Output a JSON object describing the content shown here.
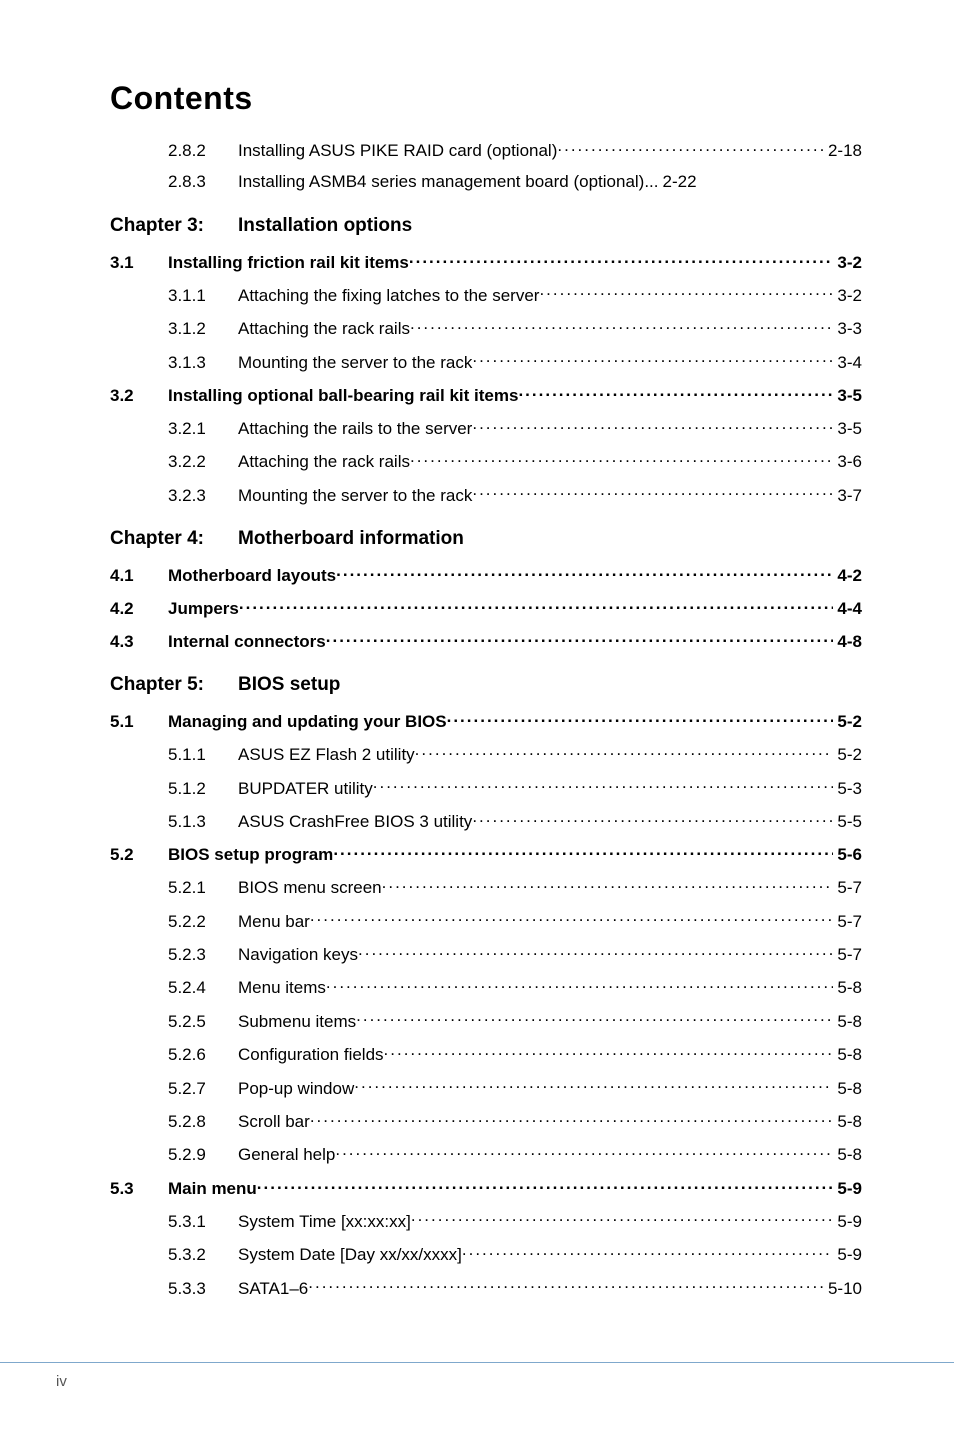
{
  "title": "Contents",
  "footer_page": "iv",
  "colors": {
    "footer_border": "#7fa8cc",
    "text": "#000000",
    "bg": "#ffffff"
  },
  "typography": {
    "title_size_pt": 24,
    "body_size_pt": 13,
    "chapter_size_pt": 14,
    "font_family": "Arial"
  },
  "lines": [
    {
      "kind": "sub",
      "num": "2.8.2",
      "label": "Installing ASUS PIKE RAID card (optional)",
      "page": "2-18",
      "leader": true
    },
    {
      "kind": "sub",
      "num": "2.8.3",
      "label": "Installing ASMB4 series management board (optional)...",
      "page": "2-22",
      "leader": false
    },
    {
      "kind": "chapter",
      "num": "Chapter 3:",
      "label": "Installation options"
    },
    {
      "kind": "sec",
      "num": "3.1",
      "label": "Installing friction rail kit items",
      "page": "3-2",
      "leader": true
    },
    {
      "kind": "sub",
      "num": "3.1.1",
      "label": "Attaching the fixing latches to the server",
      "page": "3-2",
      "leader": true
    },
    {
      "kind": "sub",
      "num": "3.1.2",
      "label": "Attaching the rack rails",
      "page": "3-3",
      "leader": true
    },
    {
      "kind": "sub",
      "num": "3.1.3",
      "label": "Mounting the server to the rack",
      "page": "3-4",
      "leader": true
    },
    {
      "kind": "sec",
      "num": "3.2",
      "label": "Installing optional ball-bearing rail kit  items",
      "page": "3-5",
      "leader": true
    },
    {
      "kind": "sub",
      "num": "3.2.1",
      "label": "Attaching the rails to the server",
      "page": "3-5",
      "leader": true
    },
    {
      "kind": "sub",
      "num": "3.2.2",
      "label": "Attaching the rack rails",
      "page": "3-6",
      "leader": true
    },
    {
      "kind": "sub",
      "num": "3.2.3",
      "label": "Mounting the server to the rack",
      "page": "3-7",
      "leader": true
    },
    {
      "kind": "chapter",
      "num": "Chapter 4:",
      "label": "Motherboard information"
    },
    {
      "kind": "sec",
      "num": "4.1",
      "label": "Motherboard layouts",
      "page": "4-2",
      "leader": true
    },
    {
      "kind": "sec",
      "num": "4.2",
      "label": "Jumpers",
      "page": "4-4",
      "leader": true
    },
    {
      "kind": "sec",
      "num": "4.3",
      "label": "Internal connectors",
      "page": "4-8",
      "leader": true
    },
    {
      "kind": "chapter",
      "num": "Chapter 5:",
      "label": "BIOS setup"
    },
    {
      "kind": "sec",
      "num": "5.1",
      "label": "Managing and updating your BIOS",
      "page": "5-2",
      "leader": true
    },
    {
      "kind": "sub",
      "num": "5.1.1",
      "label": "ASUS EZ Flash 2 utility",
      "page": "5-2",
      "leader": true
    },
    {
      "kind": "sub",
      "num": "5.1.2",
      "label": "BUPDATER utility",
      "page": "5-3",
      "leader": true
    },
    {
      "kind": "sub",
      "num": "5.1.3",
      "label": "ASUS CrashFree BIOS 3 utility",
      "page": "5-5",
      "leader": true
    },
    {
      "kind": "sec",
      "num": "5.2",
      "label": "BIOS setup program",
      "page": "5-6",
      "leader": true
    },
    {
      "kind": "sub",
      "num": "5.2.1",
      "label": "BIOS menu screen",
      "page": "5-7",
      "leader": true
    },
    {
      "kind": "sub",
      "num": "5.2.2",
      "label": "Menu bar",
      "page": "5-7",
      "leader": true
    },
    {
      "kind": "sub",
      "num": "5.2.3",
      "label": "Navigation keys",
      "page": "5-7",
      "leader": true
    },
    {
      "kind": "sub",
      "num": "5.2.4",
      "label": "Menu items",
      "page": "5-8",
      "leader": true
    },
    {
      "kind": "sub",
      "num": "5.2.5",
      "label": "Submenu items",
      "page": "5-8",
      "leader": true
    },
    {
      "kind": "sub",
      "num": "5.2.6",
      "label": "Configuration fields",
      "page": "5-8",
      "leader": true
    },
    {
      "kind": "sub",
      "num": "5.2.7",
      "label": "Pop-up window",
      "page": "5-8",
      "leader": true
    },
    {
      "kind": "sub",
      "num": "5.2.8",
      "label": "Scroll bar",
      "page": "5-8",
      "leader": true
    },
    {
      "kind": "sub",
      "num": "5.2.9",
      "label": "General help",
      "page": "5-8",
      "leader": true
    },
    {
      "kind": "sec",
      "num": "5.3",
      "label": "Main menu",
      "page": "5-9",
      "leader": true
    },
    {
      "kind": "sub",
      "num": "5.3.1",
      "label": "System Time [xx:xx:xx]",
      "page": "5-9",
      "leader": true
    },
    {
      "kind": "sub",
      "num": "5.3.2",
      "label": "System Date [Day xx/xx/xxxx]",
      "page": "5-9",
      "leader": true
    },
    {
      "kind": "sub",
      "num": "5.3.3",
      "label": "SATA1–6",
      "page": "5-10",
      "leader": true
    }
  ]
}
